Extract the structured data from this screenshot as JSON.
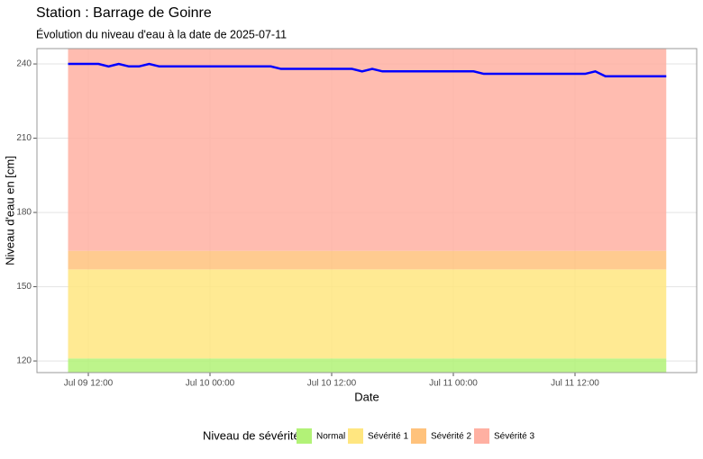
{
  "chart_data": {
    "type": "line",
    "title": "Station : Barrage de Goinre",
    "subtitle": "Évolution du niveau d'eau à la date de 2025-07-11",
    "x_label": "Date",
    "y_label": "Niveau d'eau en [cm]",
    "legend_title": "Niveau de sévérité",
    "legend_position": "bottom",
    "grid": true,
    "xlim": [
      "Jul 09 06:56",
      "Jul 12 00:00"
    ],
    "xticks": [
      "Jul 09 12:00",
      "Jul 10 00:00",
      "Jul 10 12:00",
      "Jul 11 00:00",
      "Jul 11 12:00"
    ],
    "ylim": [
      115.3,
      246.2
    ],
    "yticks": [
      120,
      150,
      180,
      210,
      240
    ],
    "series": [
      {
        "name": "Normal",
        "color": "#b2f277",
        "range": [
          115.3,
          121
        ]
      },
      {
        "name": "Sévérité 1",
        "color": "#ffe680",
        "range": [
          121,
          157
        ]
      },
      {
        "name": "Sévérité 2",
        "color": "#ffc27c",
        "range": [
          157,
          164.5
        ]
      },
      {
        "name": "Sévérité 3",
        "color": "#ffb0a2",
        "range": [
          164.5,
          246.2
        ]
      }
    ],
    "line": {
      "color": "#0000ff",
      "x": [
        "Jul 09 10:00",
        "Jul 09 11:00",
        "Jul 09 12:00",
        "Jul 09 13:00",
        "Jul 09 14:00",
        "Jul 09 15:00",
        "Jul 09 16:00",
        "Jul 09 17:00",
        "Jul 09 18:00",
        "Jul 09 19:00",
        "Jul 09 20:00",
        "Jul 09 21:00",
        "Jul 09 22:00",
        "Jul 09 23:00",
        "Jul 10 00:00",
        "Jul 10 01:00",
        "Jul 10 02:00",
        "Jul 10 03:00",
        "Jul 10 04:00",
        "Jul 10 05:00",
        "Jul 10 06:00",
        "Jul 10 07:00",
        "Jul 10 08:00",
        "Jul 10 09:00",
        "Jul 10 10:00",
        "Jul 10 11:00",
        "Jul 10 12:00",
        "Jul 10 13:00",
        "Jul 10 14:00",
        "Jul 10 15:00",
        "Jul 10 16:00",
        "Jul 10 17:00",
        "Jul 10 18:00",
        "Jul 10 19:00",
        "Jul 10 20:00",
        "Jul 10 21:00",
        "Jul 10 22:00",
        "Jul 10 23:00",
        "Jul 11 00:00",
        "Jul 11 01:00",
        "Jul 11 02:00",
        "Jul 11 03:00",
        "Jul 11 04:00",
        "Jul 11 05:00",
        "Jul 11 06:00",
        "Jul 11 07:00",
        "Jul 11 08:00",
        "Jul 11 09:00",
        "Jul 11 10:00",
        "Jul 11 11:00",
        "Jul 11 12:00",
        "Jul 11 13:00",
        "Jul 11 14:00",
        "Jul 11 15:00",
        "Jul 11 16:00",
        "Jul 11 17:00",
        "Jul 11 18:00",
        "Jul 11 19:00",
        "Jul 11 20:00",
        "Jul 11 21:00"
      ],
      "values": [
        240,
        240,
        240,
        240,
        239,
        240,
        239,
        239,
        240,
        239,
        239,
        239,
        239,
        239,
        239,
        239,
        239,
        239,
        239,
        239,
        239,
        238,
        238,
        238,
        238,
        238,
        238,
        238,
        238,
        237,
        238,
        237,
        237,
        237,
        237,
        237,
        237,
        237,
        237,
        237,
        237,
        236,
        236,
        236,
        236,
        236,
        236,
        236,
        236,
        236,
        236,
        236,
        237,
        235,
        235,
        235,
        235,
        235,
        235,
        235
      ]
    }
  }
}
